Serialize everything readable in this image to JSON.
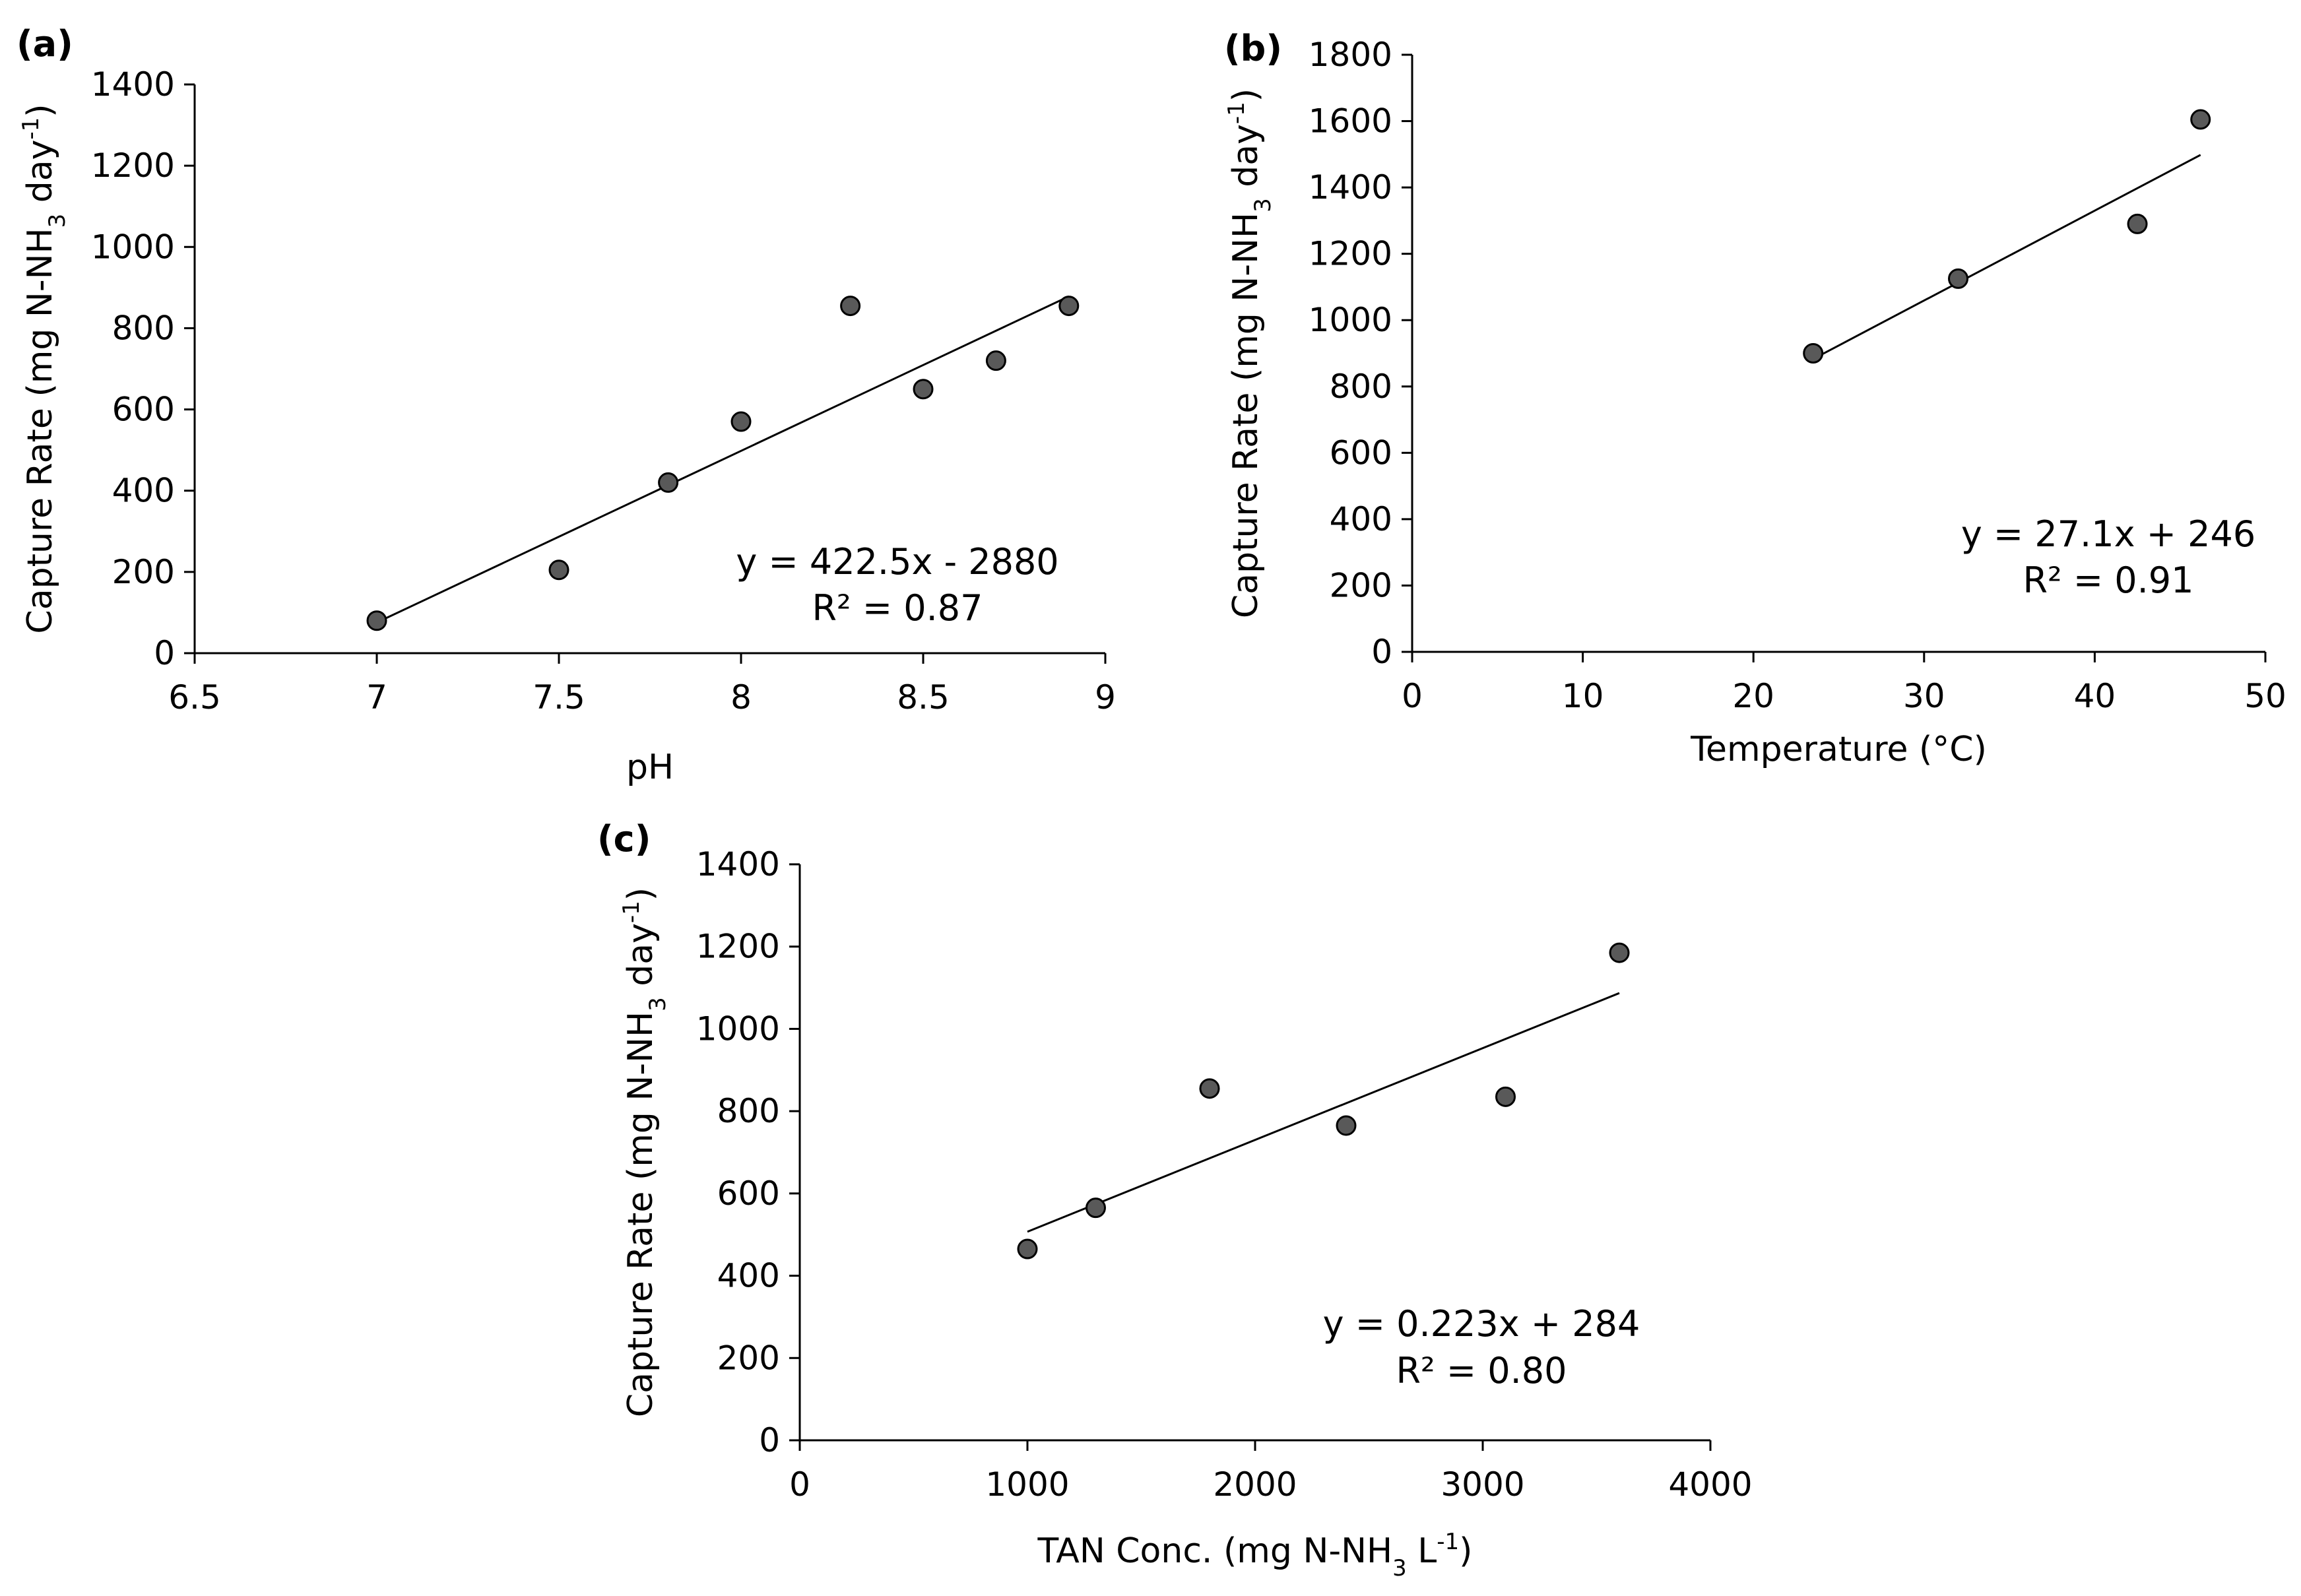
{
  "chart_data": [
    {
      "type": "scatter",
      "panel_label": "(a)",
      "xlabel": "pH",
      "ylabel_main": "Capture Rate (mg N-NH",
      "ylabel_sub": "3",
      "ylabel_mid": "  day",
      "ylabel_sup": "-1",
      "ylabel_end": ")",
      "xlim": [
        6.5,
        9
      ],
      "ylim": [
        0,
        1400
      ],
      "xticks": [
        6.5,
        7,
        7.5,
        8,
        8.5,
        9
      ],
      "yticks": [
        0,
        200,
        400,
        600,
        800,
        1000,
        1200,
        1400
      ],
      "x": [
        7.0,
        7.5,
        7.8,
        8.0,
        8.3,
        8.5,
        8.7,
        8.9
      ],
      "y": [
        80,
        205,
        420,
        570,
        855,
        650,
        720,
        855
      ],
      "trendline": {
        "x": [
          7.0,
          8.9
        ],
        "y": [
          75.5,
          878.25
        ]
      },
      "equation": "y = 422.5x - 2880",
      "r2": "R² = 0.87",
      "marker_color": "#595959"
    },
    {
      "type": "scatter",
      "panel_label": "(b)",
      "xlabel": "Temperature (°C)",
      "ylabel_main": "Capture Rate (mg N-NH",
      "ylabel_sub": "3",
      "ylabel_mid": "  day",
      "ylabel_sup": "-1",
      "ylabel_end": ")",
      "xlim": [
        0,
        50
      ],
      "ylim": [
        0,
        1800
      ],
      "xticks": [
        0,
        10,
        20,
        30,
        40,
        50
      ],
      "yticks": [
        0,
        200,
        400,
        600,
        800,
        1000,
        1200,
        1400,
        1600,
        1800
      ],
      "x": [
        23.5,
        32,
        42.5,
        46.2
      ],
      "y": [
        900,
        1125,
        1290,
        1605
      ],
      "trendline": {
        "x": [
          23.5,
          46.2
        ],
        "y": [
          883,
          1498
        ]
      },
      "equation": "y = 27.1x + 246",
      "r2": "R² = 0.91",
      "marker_color": "#595959"
    },
    {
      "type": "scatter",
      "panel_label": "(c)",
      "xlabel_main": "TAN Conc. (mg N-NH",
      "xlabel_sub": "3",
      "xlabel_mid": " L",
      "xlabel_sup": "-1",
      "xlabel_end": ")",
      "ylabel_main": "Capture Rate (mg N-NH",
      "ylabel_sub": "3",
      "ylabel_mid": "  day",
      "ylabel_sup": "-1",
      "ylabel_end": ")",
      "xlim": [
        0,
        4000
      ],
      "ylim": [
        0,
        1400
      ],
      "xticks": [
        0,
        1000,
        2000,
        3000,
        4000
      ],
      "yticks": [
        0,
        200,
        400,
        600,
        800,
        1000,
        1200,
        1400
      ],
      "x": [
        1000,
        1300,
        1800,
        2400,
        3100,
        3600
      ],
      "y": [
        465,
        565,
        855,
        765,
        835,
        1185
      ],
      "trendline": {
        "x": [
          1000,
          3600
        ],
        "y": [
          507,
          1087
        ]
      },
      "equation": "y = 0.223x + 284",
      "r2": "R² = 0.80",
      "marker_color": "#595959"
    }
  ]
}
